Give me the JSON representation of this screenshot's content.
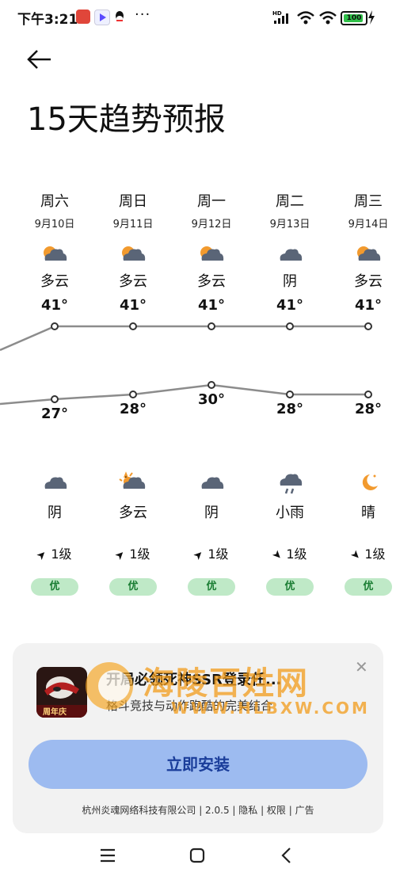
{
  "status_bar": {
    "time": "下午3:21",
    "more": "···",
    "battery": "100"
  },
  "page_title": "15天趋势预报",
  "days": [
    {
      "name": "周六",
      "date": "9月10日",
      "day_cond": "多云",
      "day_icon": "partly-cloudy-icon",
      "high": "41°",
      "low": "27°",
      "night_cond": "阴",
      "night_icon": "cloudy-icon",
      "wind": "1级",
      "aqi": "优"
    },
    {
      "name": "周日",
      "date": "9月11日",
      "day_cond": "多云",
      "day_icon": "partly-cloudy-icon",
      "high": "41°",
      "low": "28°",
      "night_cond": "多云",
      "night_icon": "partly-cloudy-night-icon",
      "wind": "1级",
      "aqi": "优"
    },
    {
      "name": "周一",
      "date": "9月12日",
      "day_cond": "多云",
      "day_icon": "partly-cloudy-icon",
      "high": "41°",
      "low": "30°",
      "night_cond": "阴",
      "night_icon": "cloudy-icon",
      "wind": "1级",
      "aqi": "优"
    },
    {
      "name": "周二",
      "date": "9月13日",
      "day_cond": "阴",
      "day_icon": "cloudy-icon",
      "high": "41°",
      "low": "28°",
      "night_cond": "小雨",
      "night_icon": "light-rain-icon",
      "wind": "1级",
      "aqi": "优"
    },
    {
      "name": "周三",
      "date": "9月14日",
      "day_cond": "多云",
      "day_icon": "partly-cloudy-icon",
      "high": "41°",
      "low": "28°",
      "night_cond": "晴",
      "night_icon": "moon-icon",
      "wind": "1级",
      "aqi": "优"
    }
  ],
  "chart_data": {
    "type": "line",
    "categories": [
      "周六",
      "周日",
      "周一",
      "周二",
      "周三"
    ],
    "series": [
      {
        "values": [
          41,
          41,
          41,
          41,
          41
        ]
      },
      {
        "values": [
          27,
          28,
          30,
          28,
          28
        ]
      }
    ]
  },
  "ad": {
    "title": "开局必领死神SSR登录任...",
    "description": "格斗竞技与动作跑酷的完美结合",
    "install_label": "立即安装",
    "footer": "杭州炎魂网络科技有限公司 | 2.0.5 | 隐私 | 权限 | 广告",
    "icon_text": "周年庆"
  },
  "watermark": {
    "line1": "海陵百姓网",
    "line2": "WWW.HLBXW.COM"
  },
  "colors": {
    "accent": "#9dbbf0",
    "aqi_good": "#bfe9c7",
    "sun": "#f29a2e",
    "cloud": "#5a6577"
  }
}
